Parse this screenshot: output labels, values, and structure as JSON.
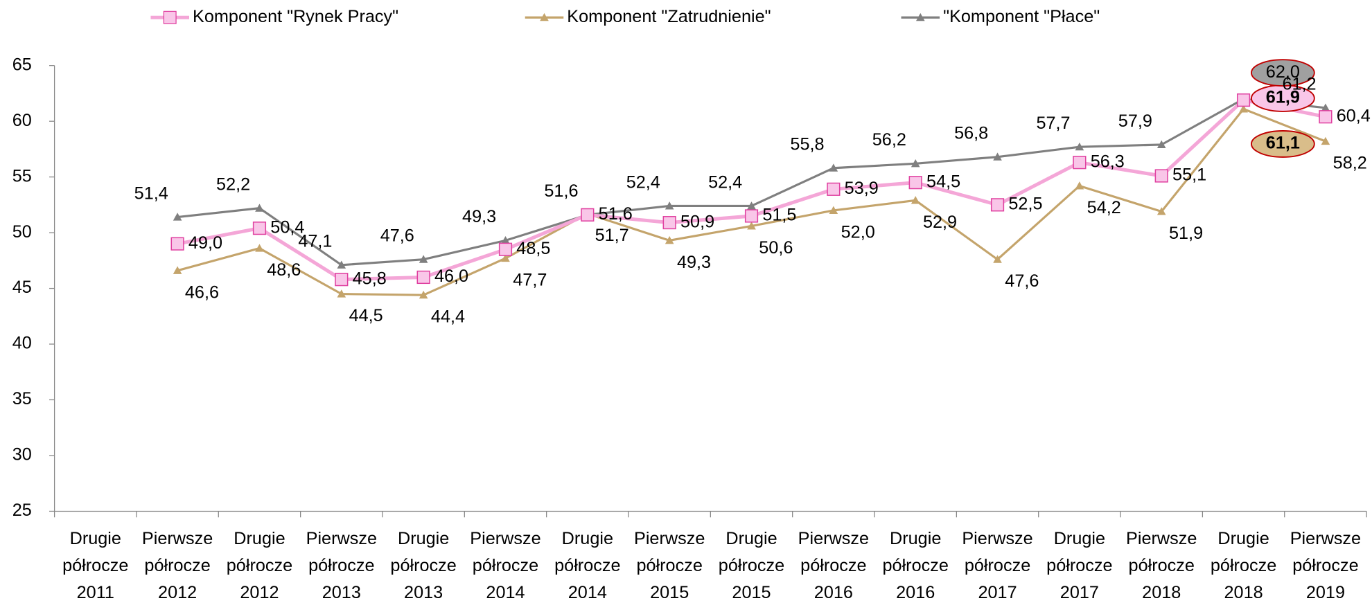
{
  "chart_data": {
    "type": "line",
    "categories": [
      "Drugie półrocze 2011",
      "Pierwsze półrocze 2012",
      "Drugie półrocze 2012",
      "Pierwsze półrocze 2013",
      "Drugie półrocze 2013",
      "Pierwsze półrocze 2014",
      "Drugie półrocze 2014",
      "Pierwsze półrocze 2015",
      "Drugie półrocze 2015",
      "Pierwsze półrocze 2016",
      "Drugie półrocze 2016",
      "Pierwsze półrocze 2017",
      "Drugie półrocze 2017",
      "Pierwsze półrocze 2018",
      "Drugie półrocze 2018",
      "Pierwsze półrocze 2019"
    ],
    "series": [
      {
        "name": "Komponent \"Rynek Pracy\"",
        "color": "#f4a6d7",
        "marker": "square",
        "values": [
          null,
          49.0,
          50.4,
          45.8,
          46.0,
          48.5,
          51.6,
          50.9,
          51.5,
          53.9,
          54.5,
          52.5,
          56.3,
          55.1,
          61.9,
          60.4
        ],
        "value_labels": [
          null,
          "49,0",
          "50,4",
          "45,8",
          "46,0",
          "48,5",
          "51,6",
          "50,9",
          "51,5",
          "53,9",
          "54,5",
          "52,5",
          "56,3",
          "55,1",
          "61,9",
          "60,4"
        ]
      },
      {
        "name": "Komponent \"Zatrudnienie\"",
        "color": "#c4a46b",
        "marker": "triangle",
        "values": [
          null,
          46.6,
          48.6,
          44.5,
          44.4,
          47.7,
          51.7,
          49.3,
          50.6,
          52.0,
          52.9,
          47.6,
          54.2,
          51.9,
          61.1,
          58.2
        ],
        "value_labels": [
          null,
          "46,6",
          "48,6",
          "44,5",
          "44,4",
          "47,7",
          "51,7",
          "49,3",
          "50,6",
          "52,0",
          "52,9",
          "47,6",
          "54,2",
          "51,9",
          "61,1",
          "58,2"
        ]
      },
      {
        "name": "\"Komponent \"Płace\"",
        "color": "#7f7f7f",
        "marker": "triangle",
        "values": [
          null,
          51.4,
          52.2,
          47.1,
          47.6,
          49.3,
          51.6,
          52.4,
          52.4,
          55.8,
          56.2,
          56.8,
          57.7,
          57.9,
          62.0,
          61.2
        ],
        "value_labels": [
          null,
          "51,4",
          "52,2",
          "47,1",
          "47,6",
          "49,3",
          "51,6",
          "52,4",
          "52,4",
          "55,8",
          "56,2",
          "56,8",
          "57,7",
          "57,9",
          "62,0",
          "61,2"
        ]
      }
    ],
    "ylim": [
      25,
      65
    ],
    "yticks": [
      25,
      30,
      35,
      40,
      45,
      50,
      55,
      60,
      65
    ],
    "legend": "top"
  }
}
